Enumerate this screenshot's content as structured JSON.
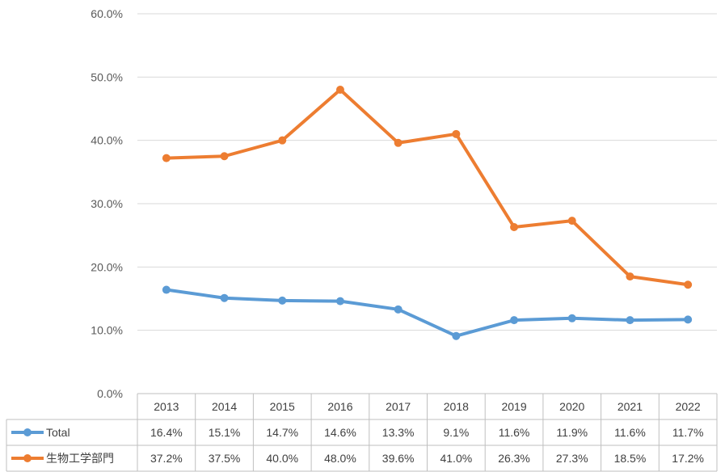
{
  "chart_data": {
    "type": "line",
    "title": "",
    "xlabel": "",
    "ylabel": "",
    "ylim": [
      0,
      60
    ],
    "y_ticks": [
      "0.0%",
      "10.0%",
      "20.0%",
      "30.0%",
      "40.0%",
      "50.0%",
      "60.0%"
    ],
    "grid": true,
    "legend": "data-table-left",
    "categories": [
      "2013",
      "2014",
      "2015",
      "2016",
      "2017",
      "2018",
      "2019",
      "2020",
      "2021",
      "2022"
    ],
    "series": [
      {
        "name": "Total",
        "color": "#5b9bd5",
        "values": [
          16.4,
          15.1,
          14.7,
          14.6,
          13.3,
          9.1,
          11.6,
          11.9,
          11.6,
          11.7
        ],
        "labels": [
          "16.4%",
          "15.1%",
          "14.7%",
          "14.6%",
          "13.3%",
          "9.1%",
          "11.6%",
          "11.9%",
          "11.6%",
          "11.7%"
        ]
      },
      {
        "name": "生物工学部門",
        "color": "#ed7d31",
        "values": [
          37.2,
          37.5,
          40.0,
          48.0,
          39.6,
          41.0,
          26.3,
          27.3,
          18.5,
          17.2
        ],
        "labels": [
          "37.2%",
          "37.5%",
          "40.0%",
          "48.0%",
          "39.6%",
          "41.0%",
          "26.3%",
          "27.3%",
          "18.5%",
          "17.2%"
        ]
      }
    ]
  }
}
